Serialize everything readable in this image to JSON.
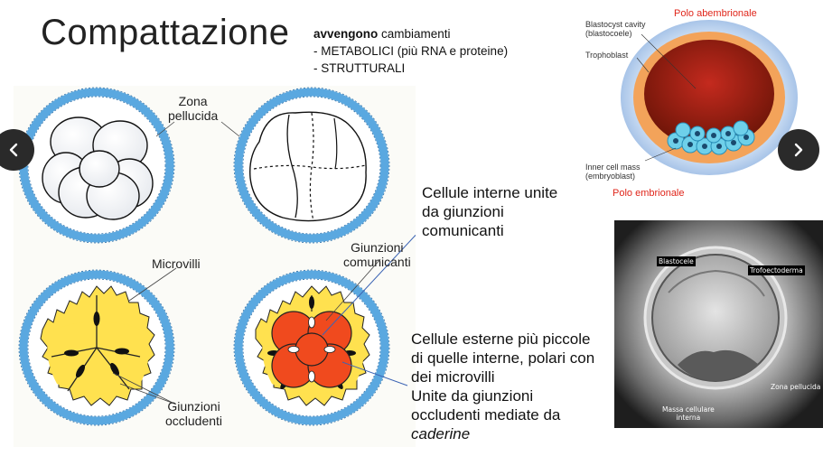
{
  "slide": {
    "title": "Compattazione",
    "changes": {
      "intro_bold": "avvengono",
      "intro_rest": " cambiamenti",
      "line1": "- METABOLICI (più RNA e proteine)",
      "line2": "- STRUTTURALI"
    }
  },
  "diagram": {
    "labels": {
      "zona_pellucida": "Zona\npellucida",
      "microvilli": "Microvilli",
      "giunzioni_comunicanti": "Giunzioni\ncomunicanti",
      "giunzioni_occludenti": "Giunzioni\noccludenti"
    }
  },
  "annotations": {
    "inner_cells": "Cellule interne unite\nda giunzioni\ncomunicanti",
    "outer_cells_1": "Cellule esterne più piccole",
    "outer_cells_2": "di quelle interne, polari con",
    "outer_cells_3": "dei microvilli",
    "outer_cells_4": "Unite da giunzioni",
    "outer_cells_5": "occludenti mediate da",
    "outer_cells_6": "caderine"
  },
  "blastocyst": {
    "top_label": "Polo abembrionale",
    "bottom_label": "Polo embrionale",
    "cavity": "Blastocyst cavity\n(blastocoele)",
    "trophoblast": "Trophoblast",
    "icm": "Inner cell mass\n(embryoblast)"
  },
  "micrograph": {
    "blastocele": "Blastocele",
    "trofoectoderma": "Trofoectoderma",
    "zona": "Zona pellucida",
    "massa": "Massa cellulare\ninterna"
  },
  "navigation": {
    "prev_icon": "chevron-left-icon",
    "next_icon": "chevron-right-icon"
  }
}
